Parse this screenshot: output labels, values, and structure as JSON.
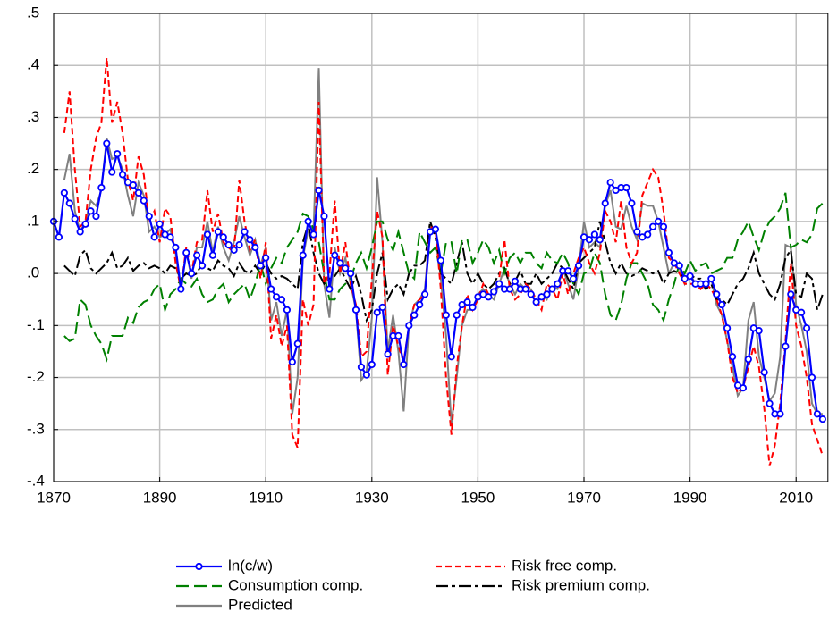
{
  "chart_data": {
    "type": "line",
    "x": [
      1870,
      1871,
      1872,
      1873,
      1874,
      1875,
      1876,
      1877,
      1878,
      1879,
      1880,
      1881,
      1882,
      1883,
      1884,
      1885,
      1886,
      1887,
      1888,
      1889,
      1890,
      1891,
      1892,
      1893,
      1894,
      1895,
      1896,
      1897,
      1898,
      1899,
      1900,
      1901,
      1902,
      1903,
      1904,
      1905,
      1906,
      1907,
      1908,
      1909,
      1910,
      1911,
      1912,
      1913,
      1914,
      1915,
      1916,
      1917,
      1918,
      1919,
      1920,
      1921,
      1922,
      1923,
      1924,
      1925,
      1926,
      1927,
      1928,
      1929,
      1930,
      1931,
      1932,
      1933,
      1934,
      1935,
      1936,
      1937,
      1938,
      1939,
      1940,
      1941,
      1942,
      1943,
      1944,
      1945,
      1946,
      1947,
      1948,
      1949,
      1950,
      1951,
      1952,
      1953,
      1954,
      1955,
      1956,
      1957,
      1958,
      1959,
      1960,
      1961,
      1962,
      1963,
      1964,
      1965,
      1966,
      1967,
      1968,
      1969,
      1970,
      1971,
      1972,
      1973,
      1974,
      1975,
      1976,
      1977,
      1978,
      1979,
      1980,
      1981,
      1982,
      1983,
      1984,
      1985,
      1986,
      1987,
      1988,
      1989,
      1990,
      1991,
      1992,
      1993,
      1994,
      1995,
      1996,
      1997,
      1998,
      1999,
      2000,
      2001,
      2002,
      2003,
      2004,
      2005,
      2006,
      2007,
      2008,
      2009,
      2010,
      2011,
      2012,
      2013,
      2014,
      2015
    ],
    "series": [
      {
        "name": "ln(c/w)",
        "color": "#0000ff",
        "style": "solid-markers",
        "values": [
          0.1,
          0.07,
          0.155,
          0.135,
          0.105,
          0.08,
          0.095,
          0.12,
          0.11,
          0.165,
          0.25,
          0.195,
          0.23,
          0.19,
          0.175,
          0.17,
          0.155,
          0.14,
          0.11,
          0.07,
          0.095,
          0.075,
          0.07,
          0.05,
          -0.03,
          0.04,
          0,
          0.035,
          0.015,
          0.075,
          0.035,
          0.08,
          0.07,
          0.055,
          0.045,
          0.055,
          0.08,
          0.065,
          0.05,
          0.015,
          0.03,
          -0.03,
          -0.045,
          -0.05,
          -0.07,
          -0.17,
          -0.135,
          0.035,
          0.1,
          0.075,
          0.16,
          0.11,
          -0.03,
          0.035,
          0.02,
          0.01,
          0,
          -0.07,
          -0.18,
          -0.195,
          -0.175,
          -0.075,
          -0.065,
          -0.155,
          -0.12,
          -0.12,
          -0.175,
          -0.1,
          -0.08,
          -0.06,
          -0.04,
          0.08,
          0.085,
          0.025,
          -0.08,
          -0.16,
          -0.08,
          -0.06,
          -0.055,
          -0.065,
          -0.045,
          -0.04,
          -0.045,
          -0.035,
          -0.02,
          -0.03,
          -0.03,
          -0.015,
          -0.03,
          -0.03,
          -0.04,
          -0.055,
          -0.045,
          -0.04,
          -0.03,
          -0.02,
          0.005,
          0.005,
          -0.01,
          0.015,
          0.07,
          0.065,
          0.075,
          0.065,
          0.135,
          0.175,
          0.16,
          0.165,
          0.165,
          0.135,
          0.08,
          0.07,
          0.075,
          0.09,
          0.1,
          0.09,
          0.04,
          0.02,
          0.015,
          -0.01,
          -0.005,
          -0.02,
          -0.02,
          -0.02,
          -0.01,
          -0.04,
          -0.06,
          -0.105,
          -0.16,
          -0.215,
          -0.22,
          -0.165,
          -0.105,
          -0.11,
          -0.19,
          -0.25,
          -0.27,
          -0.27,
          -0.14,
          -0.04,
          -0.07,
          -0.075,
          -0.105,
          -0.2,
          -0.27,
          -0.28
        ]
      },
      {
        "name": "Risk free comp.",
        "color": "#ff0000",
        "style": "dashed",
        "values": [
          null,
          null,
          0.27,
          0.35,
          0.2,
          0.09,
          0.1,
          0.2,
          0.26,
          0.29,
          0.415,
          0.29,
          0.33,
          0.27,
          0.18,
          0.14,
          0.225,
          0.19,
          0.1,
          0.12,
          0.06,
          0.125,
          0.11,
          0.02,
          -0.03,
          0.05,
          0,
          0.06,
          0.065,
          0.16,
          0.08,
          0.115,
          0.06,
          0.05,
          0.04,
          0.18,
          0.1,
          0.045,
          0.065,
          -0.01,
          0.06,
          -0.125,
          -0.08,
          -0.14,
          -0.1,
          -0.31,
          -0.335,
          -0.05,
          -0.1,
          -0.06,
          0.33,
          -0.02,
          0,
          0.14,
          0,
          0.06,
          -0.02,
          -0.06,
          -0.16,
          -0.15,
          -0.01,
          0.12,
          0.07,
          -0.195,
          -0.1,
          -0.14,
          -0.17,
          -0.1,
          -0.06,
          -0.05,
          -0.04,
          0.09,
          0.085,
          -0.03,
          -0.2,
          -0.31,
          -0.18,
          -0.1,
          -0.04,
          -0.07,
          -0.05,
          -0.02,
          -0.04,
          -0.04,
          -0.01,
          0.065,
          -0.03,
          -0.05,
          -0.04,
          -0.02,
          -0.03,
          -0.05,
          -0.07,
          -0.02,
          -0.03,
          -0.05,
          0,
          -0.04,
          0,
          0.03,
          0.05,
          0.02,
          0,
          0.04,
          0.12,
          0.1,
          0.06,
          0.14,
          0.05,
          0.02,
          0.04,
          0.15,
          0.175,
          0.2,
          0.185,
          0.12,
          0.03,
          0.02,
          0,
          -0.02,
          -0.02,
          -0.02,
          -0.03,
          -0.02,
          -0.03,
          -0.05,
          -0.08,
          -0.13,
          -0.2,
          -0.23,
          -0.22,
          -0.18,
          -0.14,
          -0.18,
          -0.26,
          -0.37,
          -0.33,
          -0.25,
          -0.13,
          0.02,
          -0.1,
          -0.14,
          -0.2,
          -0.29,
          -0.32,
          -0.35
        ]
      },
      {
        "name": "Consumption comp.",
        "color": "#008000",
        "style": "longdash",
        "values": [
          null,
          null,
          -0.12,
          -0.13,
          -0.125,
          -0.05,
          -0.06,
          -0.1,
          -0.12,
          -0.135,
          -0.165,
          -0.12,
          -0.12,
          -0.12,
          -0.085,
          -0.095,
          -0.065,
          -0.055,
          -0.05,
          -0.03,
          -0.02,
          -0.07,
          -0.04,
          -0.03,
          -0.01,
          -0.02,
          -0.025,
          -0.01,
          -0.04,
          -0.055,
          -0.05,
          -0.03,
          -0.02,
          -0.055,
          -0.04,
          -0.03,
          -0.02,
          -0.05,
          -0.02,
          0.02,
          -0.02,
          0.01,
          0.03,
          0.02,
          0.05,
          0.065,
          0.08,
          0.115,
          0.11,
          0.085,
          0.06,
          0,
          -0.05,
          -0.05,
          -0.03,
          -0.02,
          -0.01,
          0.02,
          0.04,
          0.01,
          0.05,
          0.1,
          0.1,
          0.065,
          0.045,
          0.08,
          0.04,
          0,
          -0.01,
          0.08,
          0.06,
          0.04,
          0.05,
          0,
          0.06,
          0.06,
          0,
          0.065,
          0.065,
          0.02,
          0.04,
          0.065,
          0.05,
          0.02,
          0.045,
          0,
          0.03,
          0.04,
          0.02,
          0.04,
          0.04,
          0.02,
          0.01,
          0.04,
          0.025,
          0.02,
          0.04,
          0.02,
          -0.02,
          -0.04,
          0,
          0.005,
          0.04,
          0.02,
          -0.04,
          -0.08,
          -0.09,
          -0.06,
          -0.01,
          0.02,
          0.02,
          0,
          -0.02,
          -0.06,
          -0.07,
          -0.09,
          -0.05,
          -0.02,
          0.02,
          0,
          0.025,
          0.005,
          0.015,
          0.02,
          0,
          0.005,
          0.01,
          0.03,
          0.03,
          0.065,
          0.08,
          0.1,
          0.07,
          0.045,
          0.08,
          0.1,
          0.11,
          0.125,
          0.155,
          0.05,
          0.055,
          0.065,
          0.06,
          0.075,
          0.125,
          0.135
        ]
      },
      {
        "name": "Risk premium comp.",
        "color": "#000000",
        "style": "dashdot",
        "values": [
          null,
          null,
          0.015,
          0.005,
          -0.005,
          0.035,
          0.045,
          0.01,
          0,
          0.01,
          0.02,
          0.04,
          0.01,
          0.015,
          0.03,
          0.005,
          0.015,
          0.02,
          0.01,
          0.015,
          0.01,
          0,
          0.015,
          0.01,
          -0.01,
          0,
          -0.005,
          0,
          0.02,
          0.01,
          0.005,
          0.025,
          0.015,
          0.01,
          -0.005,
          0.02,
          0.005,
          0,
          0.015,
          0,
          0.02,
          0,
          -0.01,
          -0.005,
          -0.01,
          -0.02,
          -0.03,
          0.06,
          0.095,
          0.04,
          0,
          -0.02,
          -0.01,
          -0.005,
          0.01,
          -0.01,
          -0.03,
          -0.005,
          -0.04,
          -0.09,
          -0.07,
          0,
          0.04,
          -0.05,
          -0.03,
          -0.02,
          -0.04,
          0,
          0.015,
          0.015,
          0.025,
          0.1,
          0.07,
          0,
          -0.01,
          -0.02,
          0.02,
          0.06,
          0,
          -0.02,
          0,
          -0.02,
          -0.03,
          -0.02,
          0,
          0.01,
          -0.02,
          -0.015,
          0.005,
          -0.02,
          -0.02,
          0,
          -0.02,
          -0.01,
          0,
          0.02,
          0.01,
          -0.01,
          -0.03,
          0.02,
          0.03,
          0.04,
          0.05,
          0.1,
          0.06,
          0.02,
          0,
          0.02,
          0,
          -0.005,
          0,
          0.01,
          0.005,
          0,
          0.005,
          -0.02,
          0,
          0.005,
          0,
          -0.01,
          0,
          -0.01,
          -0.01,
          -0.03,
          -0.02,
          -0.05,
          -0.05,
          -0.06,
          -0.04,
          -0.02,
          -0.01,
          0.01,
          0.04,
          0,
          -0.02,
          -0.04,
          -0.05,
          -0.02,
          0.03,
          0.045,
          -0.04,
          -0.045,
          0,
          -0.01,
          -0.07,
          -0.04
        ]
      },
      {
        "name": "Predicted",
        "color": "#808080",
        "style": "solid",
        "values": [
          null,
          null,
          0.18,
          0.23,
          0.12,
          0.08,
          0.1,
          0.14,
          0.13,
          0.16,
          0.26,
          0.22,
          0.225,
          0.2,
          0.15,
          0.11,
          0.175,
          0.15,
          0.08,
          0.09,
          0.07,
          0.075,
          0.085,
          0.04,
          -0.035,
          0.045,
          -0.01,
          0.05,
          0.05,
          0.1,
          0.04,
          0.09,
          0.05,
          0.025,
          0.06,
          0.11,
          0.07,
          0.035,
          0.065,
          0.015,
          0.05,
          -0.09,
          -0.055,
          -0.12,
          -0.07,
          -0.27,
          -0.2,
          0.03,
          0.085,
          0.08,
          0.395,
          -0.02,
          -0.085,
          0.05,
          0,
          0.03,
          -0.02,
          -0.07,
          -0.205,
          -0.19,
          -0.085,
          0.185,
          0.06,
          -0.15,
          -0.08,
          -0.15,
          -0.265,
          -0.1,
          -0.06,
          -0.05,
          -0.03,
          0.09,
          0.08,
          -0.01,
          -0.12,
          -0.29,
          -0.2,
          -0.1,
          -0.07,
          -0.07,
          -0.04,
          -0.03,
          -0.04,
          -0.05,
          -0.02,
          0.01,
          -0.02,
          -0.04,
          -0.02,
          -0.03,
          -0.03,
          -0.06,
          -0.04,
          -0.05,
          -0.025,
          -0.03,
          0.01,
          -0.02,
          -0.05,
          0.01,
          0.1,
          0.05,
          0.06,
          0.05,
          0.13,
          0.16,
          0.09,
          0.085,
          0.13,
          0.09,
          0.065,
          0.135,
          0.13,
          0.13,
          0.1,
          0.05,
          0,
          0.02,
          0.01,
          -0.02,
          0,
          -0.02,
          -0.02,
          -0.03,
          -0.01,
          -0.06,
          -0.08,
          -0.13,
          -0.18,
          -0.235,
          -0.22,
          -0.09,
          -0.055,
          -0.16,
          -0.2,
          -0.245,
          -0.23,
          -0.16,
          0.055,
          0.05,
          -0.06,
          -0.1,
          -0.15,
          -0.25,
          -0.27,
          -0.27
        ]
      }
    ],
    "xlim": [
      1870,
      2016
    ],
    "xticks": [
      1870,
      1890,
      1910,
      1930,
      1950,
      1970,
      1990,
      2010
    ],
    "ylim": [
      -0.4,
      0.5
    ],
    "yticks": [
      {
        "value": -0.4,
        "label": "-.4"
      },
      {
        "value": -0.3,
        "label": "-.3"
      },
      {
        "value": -0.2,
        "label": "-.2"
      },
      {
        "value": -0.1,
        "label": "-.1"
      },
      {
        "value": 0,
        "label": ".0"
      },
      {
        "value": 0.1,
        "label": ".1"
      },
      {
        "value": 0.2,
        "label": ".2"
      },
      {
        "value": 0.3,
        "label": ".3"
      },
      {
        "value": 0.4,
        "label": ".4"
      },
      {
        "value": 0.5,
        "label": ".5"
      }
    ],
    "grid": true
  }
}
